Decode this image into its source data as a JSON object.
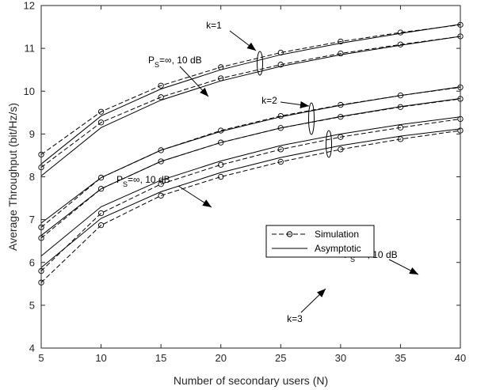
{
  "chart_data": {
    "type": "line",
    "xlabel": "Number of secondary users (N)",
    "ylabel": "Average Throughput (bit/Hz/s)",
    "xlim": [
      5,
      40
    ],
    "ylim": [
      4,
      12
    ],
    "x_ticks": [
      5,
      10,
      15,
      20,
      25,
      30,
      35,
      40
    ],
    "y_ticks": [
      4,
      5,
      6,
      7,
      8,
      9,
      10,
      11,
      12
    ],
    "grid": false,
    "legend_position": "lower-center",
    "legend": {
      "simulation": "Simulation",
      "asymptotic": "Asymptotic"
    },
    "x": [
      5,
      10,
      15,
      20,
      25,
      30,
      35,
      40
    ],
    "series": [
      {
        "group": "k=1",
        "case": "Ps=inf",
        "kind": "simulation",
        "values": [
          8.52,
          9.52,
          10.13,
          10.56,
          10.9,
          11.16,
          11.37,
          11.55
        ]
      },
      {
        "group": "k=1",
        "case": "Ps=inf",
        "kind": "asymptotic",
        "values": [
          8.3,
          9.42,
          10.05,
          10.5,
          10.85,
          11.12,
          11.35,
          11.56
        ]
      },
      {
        "group": "k=1",
        "case": "Ps=10dB",
        "kind": "simulation",
        "values": [
          8.22,
          9.27,
          9.86,
          10.3,
          10.62,
          10.88,
          11.09,
          11.28
        ]
      },
      {
        "group": "k=1",
        "case": "Ps=10dB",
        "kind": "asymptotic",
        "values": [
          8.02,
          9.15,
          9.79,
          10.24,
          10.58,
          10.85,
          11.07,
          11.28
        ]
      },
      {
        "group": "k=2",
        "case": "Ps=inf",
        "kind": "simulation",
        "values": [
          6.82,
          7.98,
          8.62,
          9.08,
          9.42,
          9.68,
          9.9,
          10.09
        ]
      },
      {
        "group": "k=2",
        "case": "Ps=inf",
        "kind": "asymptotic",
        "values": [
          6.92,
          7.98,
          8.62,
          9.06,
          9.4,
          9.67,
          9.9,
          10.1
        ]
      },
      {
        "group": "k=2",
        "case": "Ps=10dB",
        "kind": "simulation",
        "values": [
          6.57,
          7.72,
          8.36,
          8.8,
          9.14,
          9.4,
          9.63,
          9.82
        ]
      },
      {
        "group": "k=2",
        "case": "Ps=10dB",
        "kind": "asymptotic",
        "values": [
          6.63,
          7.72,
          8.36,
          8.8,
          9.14,
          9.41,
          9.64,
          9.83
        ]
      },
      {
        "group": "k=3",
        "case": "Ps=inf",
        "kind": "simulation",
        "values": [
          5.8,
          7.15,
          7.83,
          8.28,
          8.64,
          8.93,
          9.15,
          9.35
        ]
      },
      {
        "group": "k=3",
        "case": "Ps=inf",
        "kind": "asymptotic",
        "values": [
          6.15,
          7.3,
          7.92,
          8.37,
          8.73,
          9.0,
          9.22,
          9.4
        ]
      },
      {
        "group": "k=3",
        "case": "Ps=10dB",
        "kind": "simulation",
        "values": [
          5.53,
          6.87,
          7.56,
          8.0,
          8.35,
          8.64,
          8.88,
          9.08
        ]
      },
      {
        "group": "k=3",
        "case": "Ps=10dB",
        "kind": "asymptotic",
        "values": [
          5.88,
          7.03,
          7.65,
          8.1,
          8.45,
          8.73,
          8.95,
          9.12
        ]
      }
    ],
    "annotations": [
      {
        "id": "k1",
        "text": "k=1"
      },
      {
        "id": "k2",
        "text": "k=2"
      },
      {
        "id": "k3",
        "text": "k=3"
      },
      {
        "id": "ps1",
        "prefix": "P",
        "sub": "S",
        "rest": "=∞, 10 dB"
      },
      {
        "id": "ps2",
        "prefix": "P",
        "sub": "S",
        "rest": "=∞, 10 dB"
      },
      {
        "id": "ps3",
        "prefix": "P",
        "sub": "S",
        "rest": "=∞, 10 dB"
      }
    ]
  }
}
